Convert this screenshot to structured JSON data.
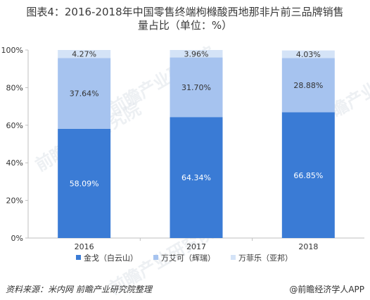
{
  "title_line1": "图表4：2016-2018年中国零售终端枸橼酸西地那非片前三品牌销售",
  "title_line2": "量占比（单位：%）",
  "source_left": "资料来源：米内网 前瞻产业研究院整理",
  "source_right": "@前瞻经济学人APP",
  "watermark": "前瞻产业研究院",
  "colors": {
    "series": [
      "#3a7bd5",
      "#a6c3ef",
      "#d4e3f7"
    ],
    "axis": "#bfbfbf",
    "grid": "#e6e6e6"
  },
  "chart_data": {
    "type": "bar",
    "stacked": true,
    "categories": [
      "2016",
      "2017",
      "2018"
    ],
    "series": [
      {
        "name": "金戈（白云山）",
        "values": [
          58.09,
          64.34,
          66.85
        ],
        "labels": [
          "58.09%",
          "64.34%",
          "66.85%"
        ]
      },
      {
        "name": "万艾可（辉瑞）",
        "values": [
          37.64,
          31.7,
          28.88
        ],
        "labels": [
          "37.64%",
          "31.70%",
          "28.88%"
        ]
      },
      {
        "name": "万菲乐（亚邦）",
        "values": [
          4.27,
          3.96,
          4.03
        ],
        "labels": [
          "4.27%",
          "3.96%",
          "4.03%"
        ]
      }
    ],
    "ylim": [
      0,
      100
    ],
    "yticks": [
      "0%",
      "20%",
      "40%",
      "60%",
      "80%",
      "100%"
    ],
    "legend_position": "bottom"
  }
}
